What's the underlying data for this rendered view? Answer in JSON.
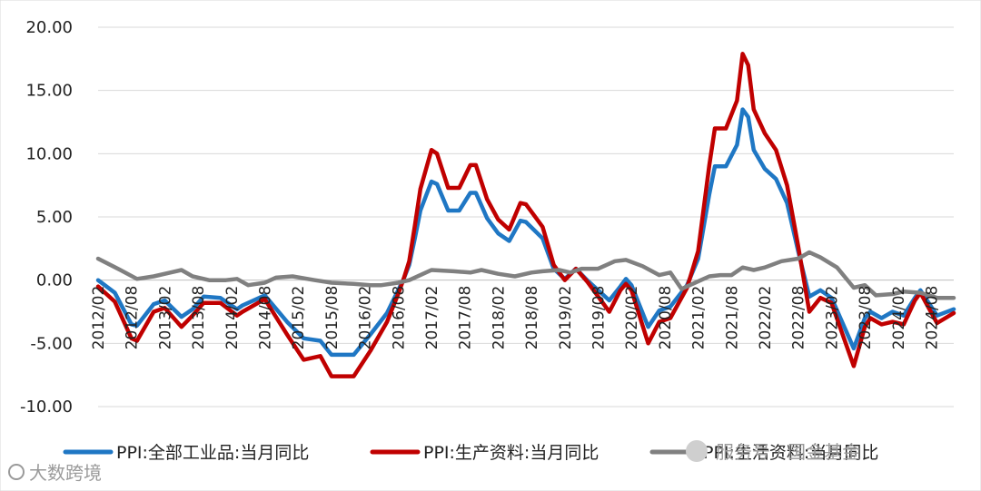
{
  "chart_data": {
    "type": "line",
    "title": "",
    "xlabel": "",
    "ylabel": "",
    "ylim": [
      -10,
      20
    ],
    "yticks": [
      -10,
      -5,
      0,
      5,
      10,
      15,
      20
    ],
    "ytick_labels": [
      "-10.00",
      "-5.00",
      "0.00",
      "5.00",
      "10.00",
      "15.00",
      "20.00"
    ],
    "grid": "horizontal",
    "legend_position": "bottom",
    "x_range": [
      "2012/02",
      "2024/12"
    ],
    "xtick_labels": [
      "2012/02",
      "2012/08",
      "2013/02",
      "2013/08",
      "2014/02",
      "2014/08",
      "2015/02",
      "2015/08",
      "2016/02",
      "2016/08",
      "2017/02",
      "2017/08",
      "2018/02",
      "2018/08",
      "2019/02",
      "2019/08",
      "2020/02",
      "2020/08",
      "2021/02",
      "2021/08",
      "2022/02",
      "2022/08",
      "2023/02",
      "2023/08",
      "2024/02",
      "2024/08"
    ],
    "series": [
      {
        "name": "PPI:全部工业品:当月同比",
        "color": "#1f77c4",
        "points": [
          [
            "2012/02",
            0.0
          ],
          [
            "2012/05",
            -1.0
          ],
          [
            "2012/08",
            -3.5
          ],
          [
            "2012/09",
            -3.6
          ],
          [
            "2012/12",
            -1.9
          ],
          [
            "2013/02",
            -1.6
          ],
          [
            "2013/05",
            -2.9
          ],
          [
            "2013/07",
            -2.3
          ],
          [
            "2013/09",
            -1.3
          ],
          [
            "2013/12",
            -1.4
          ],
          [
            "2014/03",
            -2.3
          ],
          [
            "2014/04",
            -2.0
          ],
          [
            "2014/08",
            -1.2
          ],
          [
            "2014/12",
            -3.3
          ],
          [
            "2015/03",
            -4.6
          ],
          [
            "2015/06",
            -4.8
          ],
          [
            "2015/08",
            -5.9
          ],
          [
            "2015/12",
            -5.9
          ],
          [
            "2016/03",
            -4.3
          ],
          [
            "2016/06",
            -2.6
          ],
          [
            "2016/08",
            -0.8
          ],
          [
            "2016/09",
            0.1
          ],
          [
            "2016/10",
            1.2
          ],
          [
            "2016/11",
            3.3
          ],
          [
            "2016/12",
            5.5
          ],
          [
            "2017/02",
            7.8
          ],
          [
            "2017/03",
            7.6
          ],
          [
            "2017/05",
            5.5
          ],
          [
            "2017/07",
            5.5
          ],
          [
            "2017/09",
            6.9
          ],
          [
            "2017/10",
            6.9
          ],
          [
            "2017/12",
            4.9
          ],
          [
            "2018/02",
            3.7
          ],
          [
            "2018/04",
            3.1
          ],
          [
            "2018/06",
            4.7
          ],
          [
            "2018/07",
            4.6
          ],
          [
            "2018/10",
            3.3
          ],
          [
            "2018/12",
            0.9
          ],
          [
            "2019/02",
            0.1
          ],
          [
            "2019/04",
            0.9
          ],
          [
            "2019/06",
            0.0
          ],
          [
            "2019/10",
            -1.6
          ],
          [
            "2019/12",
            -0.5
          ],
          [
            "2020/01",
            0.1
          ],
          [
            "2020/02",
            -0.4
          ],
          [
            "2020/05",
            -3.7
          ],
          [
            "2020/07",
            -2.4
          ],
          [
            "2020/09",
            -2.1
          ],
          [
            "2020/12",
            -0.4
          ],
          [
            "2021/02",
            1.7
          ],
          [
            "2021/04",
            6.8
          ],
          [
            "2021/05",
            9.0
          ],
          [
            "2021/07",
            9.0
          ],
          [
            "2021/09",
            10.7
          ],
          [
            "2021/10",
            13.5
          ],
          [
            "2021/11",
            12.9
          ],
          [
            "2021/12",
            10.3
          ],
          [
            "2022/02",
            8.8
          ],
          [
            "2022/04",
            8.0
          ],
          [
            "2022/06",
            6.1
          ],
          [
            "2022/08",
            2.3
          ],
          [
            "2022/10",
            -1.3
          ],
          [
            "2022/12",
            -0.8
          ],
          [
            "2023/02",
            -1.4
          ],
          [
            "2023/06",
            -5.4
          ],
          [
            "2023/08",
            -3.0
          ],
          [
            "2023/09",
            -2.5
          ],
          [
            "2023/11",
            -3.0
          ],
          [
            "2024/01",
            -2.5
          ],
          [
            "2024/03",
            -2.8
          ],
          [
            "2024/05",
            -1.4
          ],
          [
            "2024/06",
            -0.8
          ],
          [
            "2024/09",
            -2.8
          ],
          [
            "2024/12",
            -2.3
          ]
        ]
      },
      {
        "name": "PPI:生产资料:当月同比",
        "color": "#c00000",
        "points": [
          [
            "2012/02",
            -0.5
          ],
          [
            "2012/05",
            -1.7
          ],
          [
            "2012/08",
            -4.6
          ],
          [
            "2012/09",
            -4.8
          ],
          [
            "2012/12",
            -2.5
          ],
          [
            "2013/02",
            -2.2
          ],
          [
            "2013/05",
            -3.7
          ],
          [
            "2013/07",
            -2.8
          ],
          [
            "2013/09",
            -1.8
          ],
          [
            "2013/12",
            -1.8
          ],
          [
            "2014/03",
            -2.8
          ],
          [
            "2014/04",
            -2.5
          ],
          [
            "2014/08",
            -1.5
          ],
          [
            "2014/12",
            -4.3
          ],
          [
            "2015/03",
            -6.3
          ],
          [
            "2015/06",
            -6.0
          ],
          [
            "2015/08",
            -7.6
          ],
          [
            "2015/12",
            -7.6
          ],
          [
            "2016/03",
            -5.6
          ],
          [
            "2016/06",
            -3.3
          ],
          [
            "2016/08",
            -1.1
          ],
          [
            "2016/09",
            0.1
          ],
          [
            "2016/10",
            1.5
          ],
          [
            "2016/11",
            4.3
          ],
          [
            "2016/12",
            7.2
          ],
          [
            "2017/02",
            10.3
          ],
          [
            "2017/03",
            10.0
          ],
          [
            "2017/05",
            7.3
          ],
          [
            "2017/07",
            7.3
          ],
          [
            "2017/09",
            9.1
          ],
          [
            "2017/10",
            9.1
          ],
          [
            "2017/12",
            6.4
          ],
          [
            "2018/02",
            4.8
          ],
          [
            "2018/04",
            4.0
          ],
          [
            "2018/06",
            6.1
          ],
          [
            "2018/07",
            6.0
          ],
          [
            "2018/10",
            4.2
          ],
          [
            "2018/12",
            1.2
          ],
          [
            "2019/02",
            0.0
          ],
          [
            "2019/04",
            0.9
          ],
          [
            "2019/06",
            -0.1
          ],
          [
            "2019/10",
            -2.5
          ],
          [
            "2019/12",
            -0.8
          ],
          [
            "2020/01",
            -0.3
          ],
          [
            "2020/02",
            -0.8
          ],
          [
            "2020/05",
            -5.0
          ],
          [
            "2020/07",
            -3.3
          ],
          [
            "2020/09",
            -3.0
          ],
          [
            "2020/12",
            -0.6
          ],
          [
            "2021/02",
            2.3
          ],
          [
            "2021/04",
            9.1
          ],
          [
            "2021/05",
            12.0
          ],
          [
            "2021/07",
            12.0
          ],
          [
            "2021/09",
            14.2
          ],
          [
            "2021/10",
            17.9
          ],
          [
            "2021/11",
            17.0
          ],
          [
            "2021/12",
            13.5
          ],
          [
            "2022/02",
            11.6
          ],
          [
            "2022/04",
            10.3
          ],
          [
            "2022/06",
            7.5
          ],
          [
            "2022/08",
            2.7
          ],
          [
            "2022/10",
            -2.5
          ],
          [
            "2022/12",
            -1.4
          ],
          [
            "2023/02",
            -1.8
          ],
          [
            "2023/06",
            -6.8
          ],
          [
            "2023/08",
            -3.7
          ],
          [
            "2023/09",
            -3.0
          ],
          [
            "2023/11",
            -3.5
          ],
          [
            "2024/01",
            -3.3
          ],
          [
            "2024/03",
            -3.5
          ],
          [
            "2024/05",
            -1.6
          ],
          [
            "2024/06",
            -1.0
          ],
          [
            "2024/09",
            -3.4
          ],
          [
            "2024/12",
            -2.6
          ]
        ]
      },
      {
        "name": "PPI:生活资料:当月同比",
        "color": "#808080",
        "points": [
          [
            "2012/02",
            1.7
          ],
          [
            "2012/06",
            0.8
          ],
          [
            "2012/09",
            0.1
          ],
          [
            "2012/12",
            0.3
          ],
          [
            "2013/03",
            0.6
          ],
          [
            "2013/05",
            0.8
          ],
          [
            "2013/07",
            0.3
          ],
          [
            "2013/10",
            0.0
          ],
          [
            "2014/01",
            0.0
          ],
          [
            "2014/03",
            0.1
          ],
          [
            "2014/05",
            -0.4
          ],
          [
            "2014/08",
            -0.2
          ],
          [
            "2014/10",
            0.2
          ],
          [
            "2015/01",
            0.3
          ],
          [
            "2015/05",
            0.0
          ],
          [
            "2015/08",
            -0.2
          ],
          [
            "2015/12",
            -0.3
          ],
          [
            "2016/03",
            -0.4
          ],
          [
            "2016/05",
            -0.4
          ],
          [
            "2016/08",
            -0.2
          ],
          [
            "2016/10",
            0.0
          ],
          [
            "2016/12",
            0.4
          ],
          [
            "2017/02",
            0.8
          ],
          [
            "2017/06",
            0.7
          ],
          [
            "2017/09",
            0.6
          ],
          [
            "2017/11",
            0.8
          ],
          [
            "2018/02",
            0.5
          ],
          [
            "2018/05",
            0.3
          ],
          [
            "2018/08",
            0.6
          ],
          [
            "2018/10",
            0.7
          ],
          [
            "2019/01",
            0.8
          ],
          [
            "2019/03",
            0.6
          ],
          [
            "2019/05",
            0.9
          ],
          [
            "2019/08",
            0.9
          ],
          [
            "2019/11",
            1.5
          ],
          [
            "2020/01",
            1.6
          ],
          [
            "2020/04",
            1.1
          ],
          [
            "2020/07",
            0.4
          ],
          [
            "2020/09",
            0.6
          ],
          [
            "2020/11",
            -0.7
          ],
          [
            "2021/01",
            -0.3
          ],
          [
            "2021/04",
            0.3
          ],
          [
            "2021/06",
            0.4
          ],
          [
            "2021/08",
            0.4
          ],
          [
            "2021/10",
            1.0
          ],
          [
            "2021/12",
            0.8
          ],
          [
            "2022/02",
            1.0
          ],
          [
            "2022/05",
            1.5
          ],
          [
            "2022/08",
            1.7
          ],
          [
            "2022/10",
            2.2
          ],
          [
            "2022/12",
            1.8
          ],
          [
            "2023/03",
            1.0
          ],
          [
            "2023/06",
            -0.6
          ],
          [
            "2023/08",
            -0.4
          ],
          [
            "2023/10",
            -1.2
          ],
          [
            "2024/01",
            -1.1
          ],
          [
            "2024/03",
            -0.9
          ],
          [
            "2024/06",
            -1.0
          ],
          [
            "2024/09",
            -1.4
          ],
          [
            "2024/12",
            -1.4
          ]
        ]
      }
    ]
  },
  "watermark": {
    "account_text": "服务号 · 国金基金",
    "brand_text": "大数跨境"
  }
}
